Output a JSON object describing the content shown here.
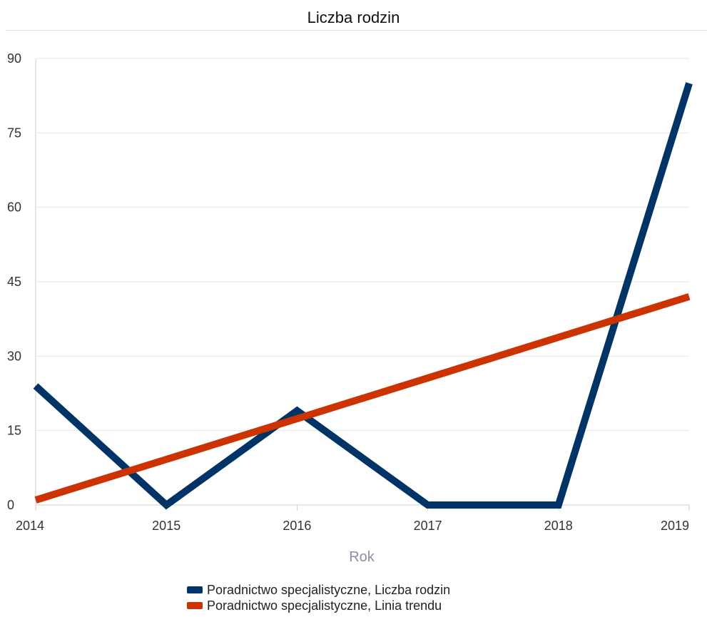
{
  "chart_data": {
    "type": "line",
    "title": "Liczba rodzin",
    "xlabel": "Rok",
    "ylabel": "",
    "x": [
      2014,
      2015,
      2016,
      2017,
      2018,
      2019
    ],
    "x_tick_labels": [
      "2014",
      "2015",
      "2016",
      "2017",
      "2018",
      "2019"
    ],
    "y_ticks": [
      0,
      15,
      30,
      45,
      60,
      75,
      90
    ],
    "ylim": [
      0,
      90
    ],
    "grid": true,
    "legend_position": "bottom",
    "series": [
      {
        "name": "Poradnictwo specjalistyczne, Liczba rodzin",
        "color": "#003366",
        "values": [
          24,
          0,
          19,
          0,
          0,
          85
        ]
      },
      {
        "name": "Poradnictwo specjalistyczne, Linia trendu",
        "color": "#cc3300",
        "values": [
          1,
          9.2,
          17.4,
          25.6,
          33.8,
          42
        ]
      }
    ]
  }
}
